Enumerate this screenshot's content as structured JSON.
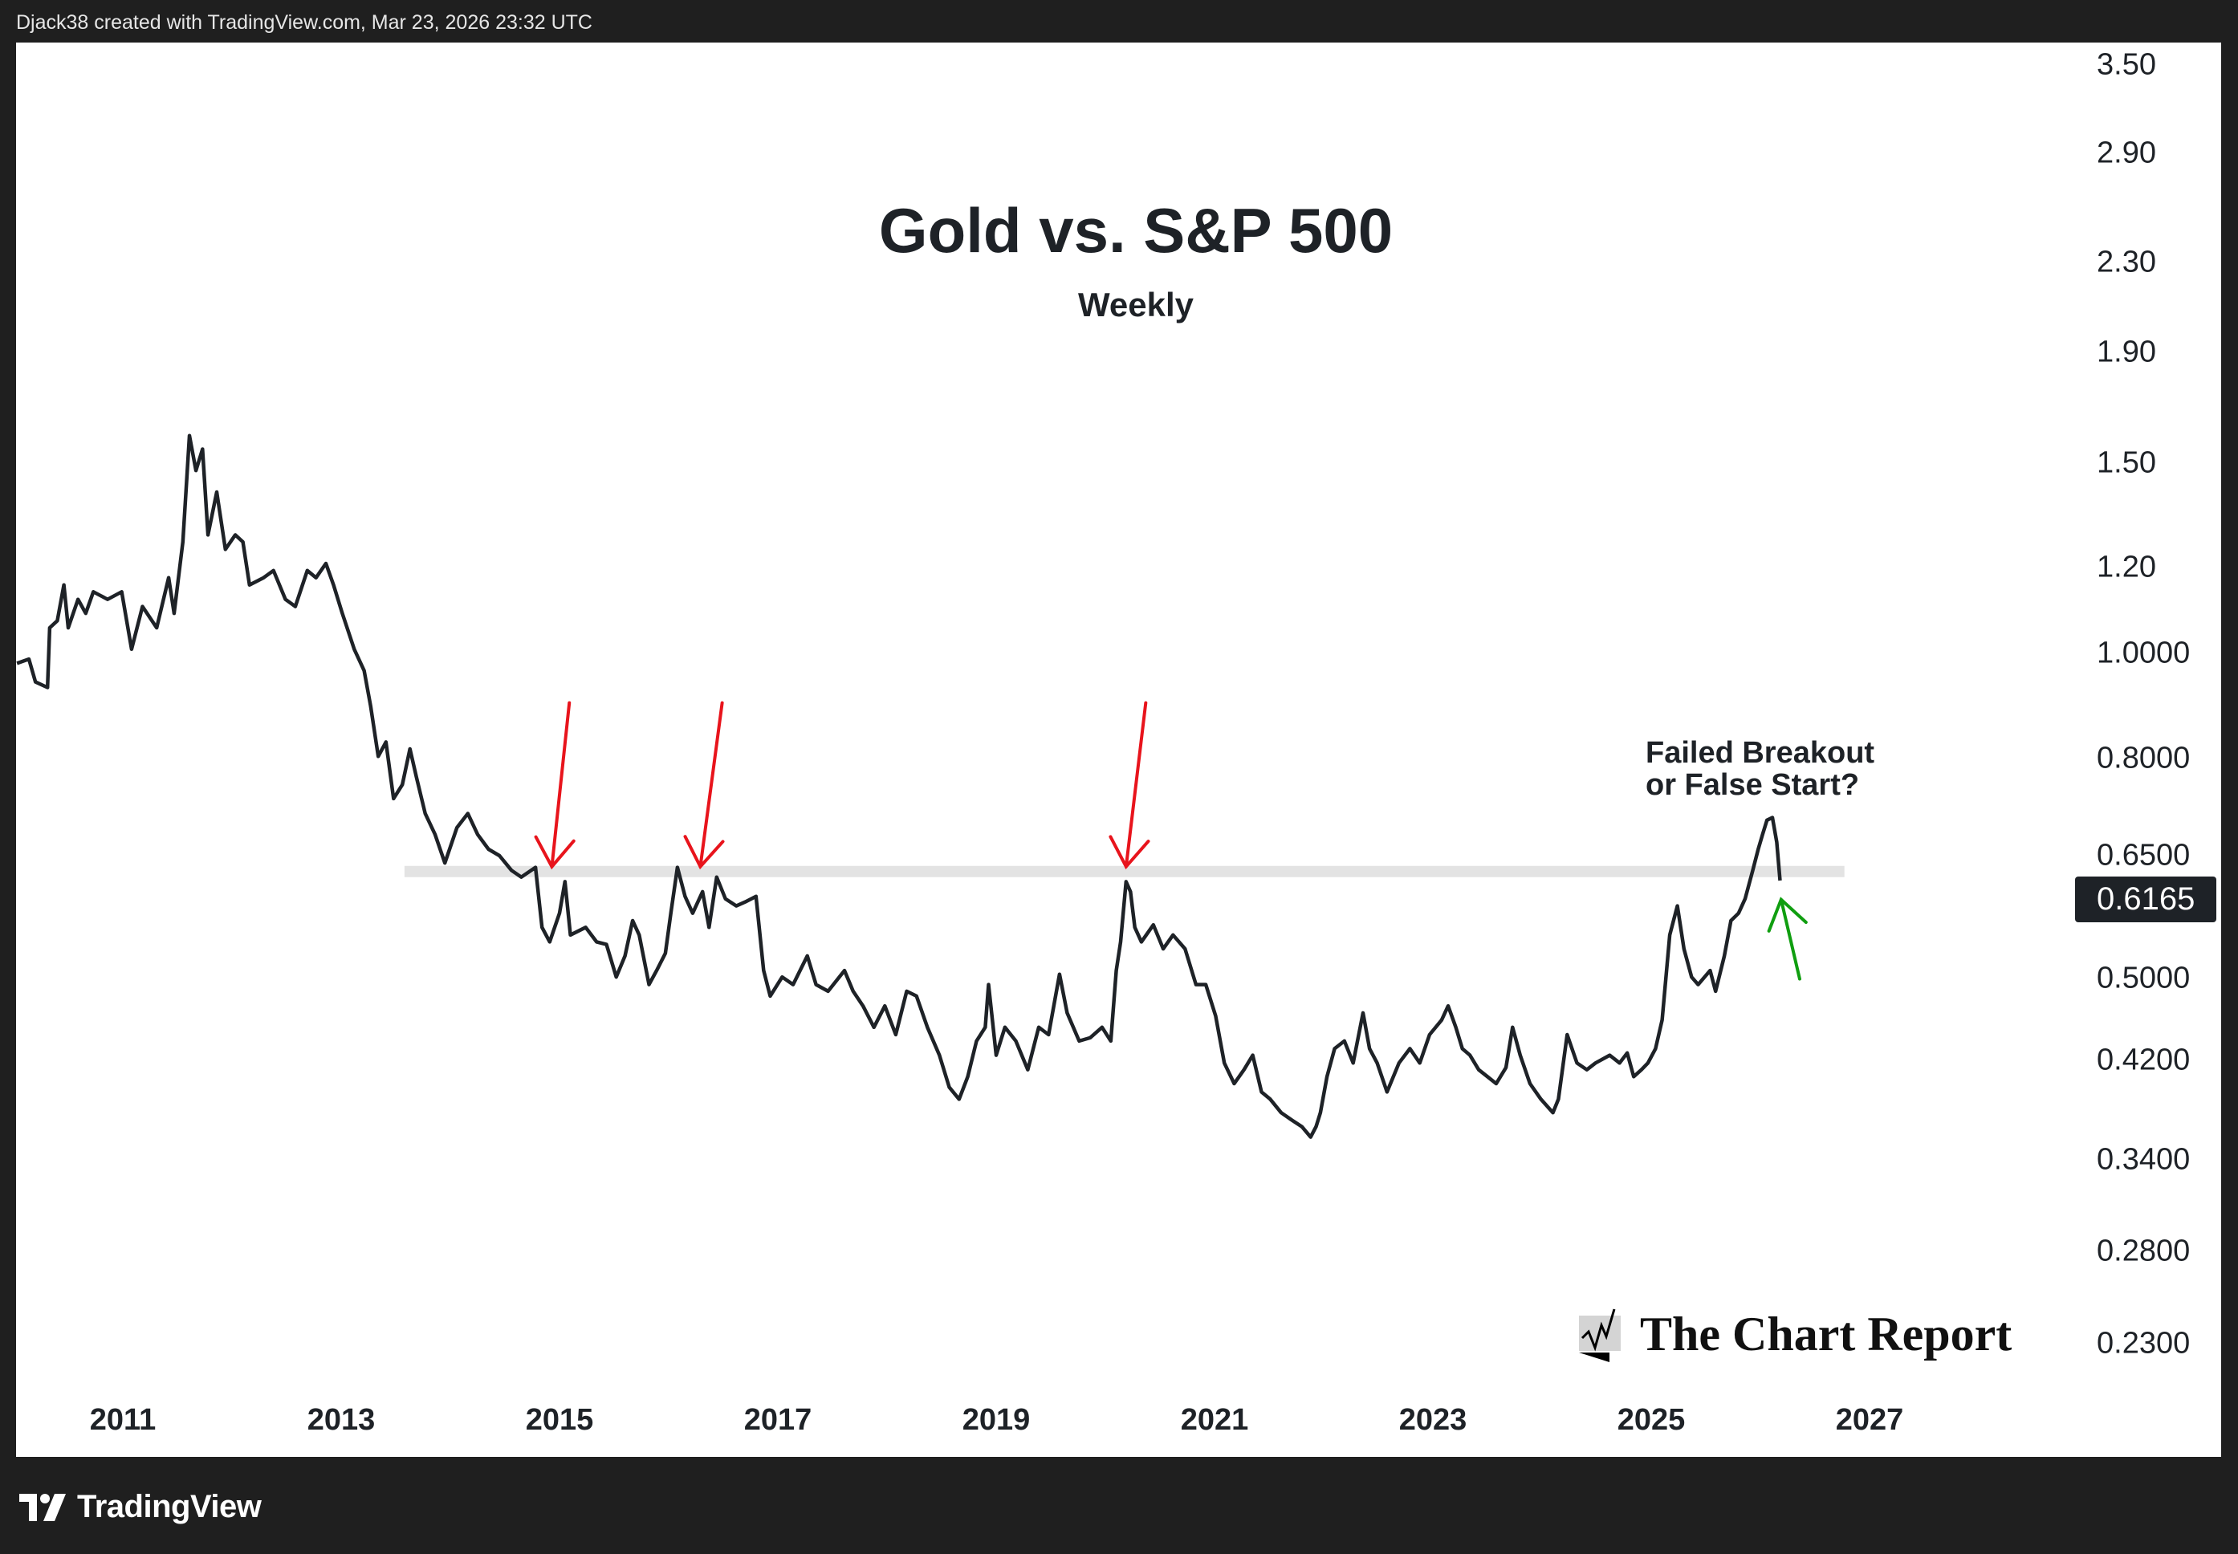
{
  "header": {
    "credit": "Djack38 created with TradingView.com, Mar 23, 2026 23:32 UTC"
  },
  "footer": {
    "brand": "TradingView"
  },
  "watermark": {
    "text": "The Chart Report"
  },
  "annotation": {
    "line1": "Failed Breakout",
    "line2": "or False Start?"
  },
  "colors": {
    "line": "#1e2227",
    "band": "#e3e3e3",
    "red_arrow": "#e8141c",
    "green_arrow": "#109e10"
  },
  "chart_data": {
    "type": "line",
    "title": "Gold vs. S&P 500",
    "subtitle": "Weekly",
    "yscale": "log",
    "ylim": [
      0.21,
      3.7
    ],
    "xlim": [
      2009.9,
      2028.6
    ],
    "last_value_label": "0.6165",
    "last_value": 0.6165,
    "y_ticks": [
      {
        "value": 3.5,
        "label": "3.50"
      },
      {
        "value": 2.9,
        "label": "2.90"
      },
      {
        "value": 2.3,
        "label": "2.30"
      },
      {
        "value": 1.9,
        "label": "1.90"
      },
      {
        "value": 1.5,
        "label": "1.50"
      },
      {
        "value": 1.2,
        "label": "1.20"
      },
      {
        "value": 1.0,
        "label": "1.0000"
      },
      {
        "value": 0.8,
        "label": "0.8000"
      },
      {
        "value": 0.65,
        "label": "0.6500"
      },
      {
        "value": 0.5,
        "label": "0.5000"
      },
      {
        "value": 0.42,
        "label": "0.4200"
      },
      {
        "value": 0.34,
        "label": "0.3400"
      },
      {
        "value": 0.28,
        "label": "0.2800"
      },
      {
        "value": 0.23,
        "label": "0.2300"
      }
    ],
    "x_ticks": [
      {
        "value": 2011,
        "label": "2011"
      },
      {
        "value": 2013,
        "label": "2013"
      },
      {
        "value": 2015,
        "label": "2015"
      },
      {
        "value": 2017,
        "label": "2017"
      },
      {
        "value": 2019,
        "label": "2019"
      },
      {
        "value": 2021,
        "label": "2021"
      },
      {
        "value": 2023,
        "label": "2023"
      },
      {
        "value": 2025,
        "label": "2025"
      },
      {
        "value": 2027,
        "label": "2027"
      }
    ],
    "resistance_band": {
      "x": [
        2013.58,
        2026.77
      ],
      "y": [
        0.621,
        0.636
      ]
    },
    "red_arrows": [
      {
        "from": [
          2015.09,
          0.9
        ],
        "to": [
          2014.93,
          0.635
        ]
      },
      {
        "from": [
          2016.49,
          0.9
        ],
        "to": [
          2016.29,
          0.635
        ]
      },
      {
        "from": [
          2020.37,
          0.9
        ],
        "to": [
          2020.19,
          0.635
        ]
      }
    ],
    "green_arrow": {
      "from": [
        2026.36,
        0.5
      ],
      "to": [
        2026.19,
        0.592
      ]
    },
    "series": [
      {
        "name": "Gold / S&P 500",
        "points": [
          [
            2010.03,
            0.979
          ],
          [
            2010.14,
            0.988
          ],
          [
            2010.2,
            0.941
          ],
          [
            2010.31,
            0.93
          ],
          [
            2010.33,
            1.056
          ],
          [
            2010.4,
            1.072
          ],
          [
            2010.46,
            1.157
          ],
          [
            2010.5,
            1.056
          ],
          [
            2010.59,
            1.122
          ],
          [
            2010.66,
            1.089
          ],
          [
            2010.73,
            1.14
          ],
          [
            2010.86,
            1.122
          ],
          [
            2010.99,
            1.14
          ],
          [
            2011.08,
            1.009
          ],
          [
            2011.18,
            1.105
          ],
          [
            2011.31,
            1.056
          ],
          [
            2011.42,
            1.175
          ],
          [
            2011.47,
            1.089
          ],
          [
            2011.55,
            1.268
          ],
          [
            2011.61,
            1.59
          ],
          [
            2011.67,
            1.476
          ],
          [
            2011.73,
            1.545
          ],
          [
            2011.78,
            1.287
          ],
          [
            2011.86,
            1.41
          ],
          [
            2011.94,
            1.248
          ],
          [
            2012.03,
            1.287
          ],
          [
            2012.1,
            1.268
          ],
          [
            2012.16,
            1.157
          ],
          [
            2012.29,
            1.175
          ],
          [
            2012.38,
            1.193
          ],
          [
            2012.49,
            1.122
          ],
          [
            2012.58,
            1.105
          ],
          [
            2012.69,
            1.193
          ],
          [
            2012.77,
            1.175
          ],
          [
            2012.86,
            1.211
          ],
          [
            2012.93,
            1.157
          ],
          [
            2013.01,
            1.089
          ],
          [
            2013.12,
            1.009
          ],
          [
            2013.21,
            0.964
          ],
          [
            2013.27,
            0.894
          ],
          [
            2013.34,
            0.803
          ],
          [
            2013.41,
            0.828
          ],
          [
            2013.48,
            0.734
          ],
          [
            2013.56,
            0.756
          ],
          [
            2013.63,
            0.816
          ],
          [
            2013.69,
            0.768
          ],
          [
            2013.77,
            0.711
          ],
          [
            2013.86,
            0.68
          ],
          [
            2013.95,
            0.64
          ],
          [
            2014.06,
            0.69
          ],
          [
            2014.16,
            0.711
          ],
          [
            2014.25,
            0.68
          ],
          [
            2014.35,
            0.659
          ],
          [
            2014.45,
            0.65
          ],
          [
            2014.56,
            0.63
          ],
          [
            2014.65,
            0.621
          ],
          [
            2014.78,
            0.634
          ],
          [
            2014.84,
            0.558
          ],
          [
            2014.91,
            0.541
          ],
          [
            2015.0,
            0.575
          ],
          [
            2015.05,
            0.615
          ],
          [
            2015.1,
            0.549
          ],
          [
            2015.24,
            0.558
          ],
          [
            2015.34,
            0.541
          ],
          [
            2015.43,
            0.538
          ],
          [
            2015.52,
            0.502
          ],
          [
            2015.6,
            0.525
          ],
          [
            2015.67,
            0.566
          ],
          [
            2015.73,
            0.549
          ],
          [
            2015.82,
            0.494
          ],
          [
            2015.89,
            0.509
          ],
          [
            2015.97,
            0.528
          ],
          [
            2016.02,
            0.575
          ],
          [
            2016.08,
            0.634
          ],
          [
            2016.15,
            0.596
          ],
          [
            2016.22,
            0.575
          ],
          [
            2016.31,
            0.602
          ],
          [
            2016.37,
            0.558
          ],
          [
            2016.44,
            0.621
          ],
          [
            2016.52,
            0.593
          ],
          [
            2016.62,
            0.584
          ],
          [
            2016.7,
            0.589
          ],
          [
            2016.8,
            0.596
          ],
          [
            2016.87,
            0.509
          ],
          [
            2016.93,
            0.482
          ],
          [
            2017.04,
            0.502
          ],
          [
            2017.14,
            0.494
          ],
          [
            2017.27,
            0.525
          ],
          [
            2017.35,
            0.494
          ],
          [
            2017.46,
            0.487
          ],
          [
            2017.61,
            0.509
          ],
          [
            2017.69,
            0.487
          ],
          [
            2017.78,
            0.472
          ],
          [
            2017.88,
            0.451
          ],
          [
            2017.98,
            0.472
          ],
          [
            2018.08,
            0.444
          ],
          [
            2018.18,
            0.487
          ],
          [
            2018.27,
            0.482
          ],
          [
            2018.37,
            0.451
          ],
          [
            2018.48,
            0.425
          ],
          [
            2018.57,
            0.397
          ],
          [
            2018.66,
            0.387
          ],
          [
            2018.74,
            0.406
          ],
          [
            2018.82,
            0.438
          ],
          [
            2018.9,
            0.451
          ],
          [
            2018.93,
            0.494
          ],
          [
            2019.0,
            0.425
          ],
          [
            2019.08,
            0.451
          ],
          [
            2019.18,
            0.438
          ],
          [
            2019.29,
            0.412
          ],
          [
            2019.39,
            0.451
          ],
          [
            2019.48,
            0.444
          ],
          [
            2019.58,
            0.505
          ],
          [
            2019.65,
            0.465
          ],
          [
            2019.76,
            0.438
          ],
          [
            2019.86,
            0.441
          ],
          [
            2019.97,
            0.451
          ],
          [
            2020.05,
            0.438
          ],
          [
            2020.1,
            0.509
          ],
          [
            2020.14,
            0.541
          ],
          [
            2020.19,
            0.615
          ],
          [
            2020.23,
            0.602
          ],
          [
            2020.27,
            0.558
          ],
          [
            2020.33,
            0.541
          ],
          [
            2020.44,
            0.561
          ],
          [
            2020.53,
            0.533
          ],
          [
            2020.62,
            0.549
          ],
          [
            2020.73,
            0.533
          ],
          [
            2020.83,
            0.494
          ],
          [
            2020.92,
            0.494
          ],
          [
            2021.01,
            0.462
          ],
          [
            2021.09,
            0.418
          ],
          [
            2021.18,
            0.4
          ],
          [
            2021.27,
            0.412
          ],
          [
            2021.35,
            0.425
          ],
          [
            2021.43,
            0.393
          ],
          [
            2021.51,
            0.387
          ],
          [
            2021.61,
            0.376
          ],
          [
            2021.71,
            0.37
          ],
          [
            2021.8,
            0.365
          ],
          [
            2021.88,
            0.357
          ],
          [
            2021.93,
            0.365
          ],
          [
            2021.97,
            0.376
          ],
          [
            2022.03,
            0.406
          ],
          [
            2022.1,
            0.431
          ],
          [
            2022.19,
            0.438
          ],
          [
            2022.27,
            0.418
          ],
          [
            2022.36,
            0.465
          ],
          [
            2022.42,
            0.431
          ],
          [
            2022.49,
            0.418
          ],
          [
            2022.58,
            0.393
          ],
          [
            2022.69,
            0.418
          ],
          [
            2022.79,
            0.431
          ],
          [
            2022.88,
            0.418
          ],
          [
            2022.97,
            0.444
          ],
          [
            2023.08,
            0.458
          ],
          [
            2023.14,
            0.472
          ],
          [
            2023.21,
            0.451
          ],
          [
            2023.27,
            0.431
          ],
          [
            2023.34,
            0.425
          ],
          [
            2023.42,
            0.412
          ],
          [
            2023.5,
            0.406
          ],
          [
            2023.58,
            0.4
          ],
          [
            2023.67,
            0.414
          ],
          [
            2023.73,
            0.451
          ],
          [
            2023.8,
            0.425
          ],
          [
            2023.89,
            0.4
          ],
          [
            2023.99,
            0.387
          ],
          [
            2024.1,
            0.376
          ],
          [
            2024.15,
            0.387
          ],
          [
            2024.23,
            0.444
          ],
          [
            2024.32,
            0.418
          ],
          [
            2024.41,
            0.412
          ],
          [
            2024.49,
            0.418
          ],
          [
            2024.62,
            0.425
          ],
          [
            2024.71,
            0.418
          ],
          [
            2024.78,
            0.427
          ],
          [
            2024.84,
            0.406
          ],
          [
            2024.91,
            0.412
          ],
          [
            2024.97,
            0.418
          ],
          [
            2025.04,
            0.431
          ],
          [
            2025.1,
            0.458
          ],
          [
            2025.17,
            0.549
          ],
          [
            2025.24,
            0.584
          ],
          [
            2025.3,
            0.533
          ],
          [
            2025.37,
            0.502
          ],
          [
            2025.43,
            0.494
          ],
          [
            2025.54,
            0.509
          ],
          [
            2025.59,
            0.487
          ],
          [
            2025.67,
            0.525
          ],
          [
            2025.73,
            0.566
          ],
          [
            2025.8,
            0.575
          ],
          [
            2025.86,
            0.593
          ],
          [
            2025.93,
            0.63
          ],
          [
            2025.98,
            0.659
          ],
          [
            2026.02,
            0.68
          ],
          [
            2026.06,
            0.701
          ],
          [
            2026.11,
            0.705
          ],
          [
            2026.15,
            0.669
          ],
          [
            2026.18,
            0.6165
          ]
        ]
      }
    ]
  }
}
